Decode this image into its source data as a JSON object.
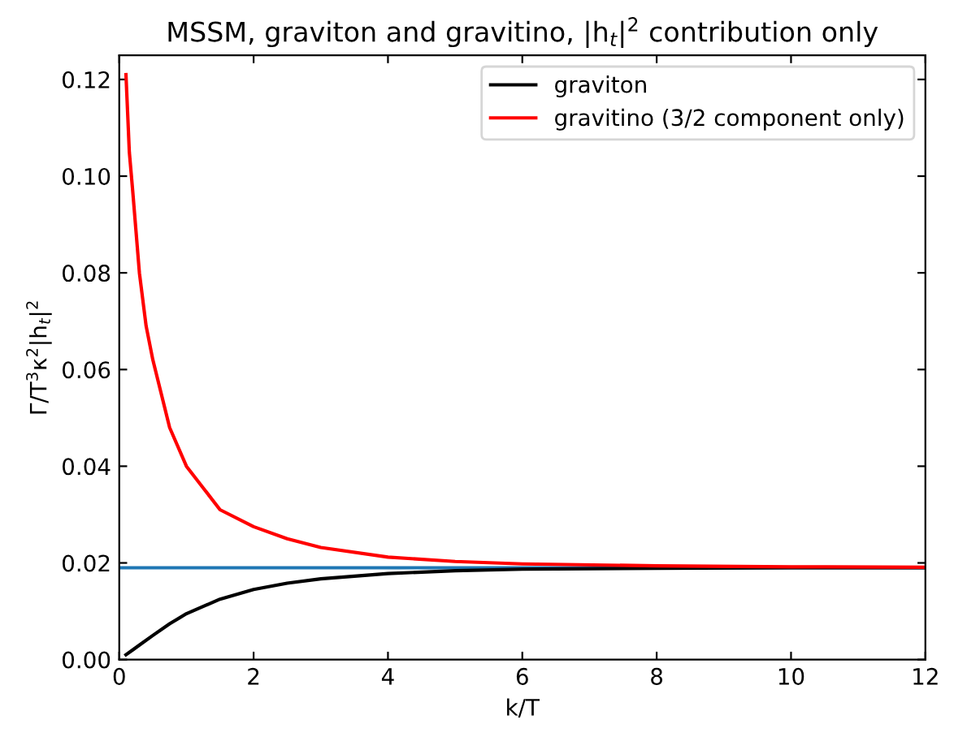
{
  "chart_data": {
    "type": "line",
    "title": "MSSM, graviton and gravitino, |h$_{t}$|$^{2}$ contribution only",
    "xlabel": "k/T",
    "ylabel": "Γ/T$^{3}$κ$^{2}$|h$_{t}$|$^{2}$",
    "series": [
      {
        "name": "graviton",
        "color": "#000000",
        "x": [
          0.1,
          0.2,
          0.3,
          0.5,
          0.75,
          1,
          1.5,
          2,
          2.5,
          3,
          4,
          5,
          6,
          8,
          10,
          12
        ],
        "values": [
          0.001,
          0.002,
          0.003,
          0.005,
          0.0074,
          0.0095,
          0.0125,
          0.0145,
          0.0158,
          0.0167,
          0.0178,
          0.0184,
          0.0187,
          0.0189,
          0.019,
          0.019
        ]
      },
      {
        "name": "gravitino (3/2 component only)",
        "color": "#ff0000",
        "x": [
          0.1,
          0.15,
          0.2,
          0.3,
          0.4,
          0.5,
          0.75,
          1,
          1.5,
          2,
          2.5,
          3,
          4,
          5,
          6,
          8,
          10,
          12
        ],
        "values": [
          0.121,
          0.105,
          0.097,
          0.08,
          0.069,
          0.062,
          0.048,
          0.04,
          0.031,
          0.0275,
          0.025,
          0.0232,
          0.0212,
          0.0203,
          0.0198,
          0.0194,
          0.0192,
          0.0191
        ]
      }
    ],
    "ref_lines": [
      {
        "axis": "y",
        "value": 0.019,
        "color": "#1f77b4"
      }
    ],
    "xlim": [
      0,
      12
    ],
    "xticks": [
      0,
      2,
      4,
      6,
      8,
      10,
      12
    ],
    "ylim": [
      0,
      0.125
    ],
    "yticks": [
      {
        "value": 0,
        "label": "0.00"
      },
      {
        "value": 0.02,
        "label": "0.02"
      },
      {
        "value": 0.04,
        "label": "0.04"
      },
      {
        "value": 0.06,
        "label": "0.06"
      },
      {
        "value": 0.08,
        "label": "0.08"
      },
      {
        "value": 0.1,
        "label": "0.10"
      },
      {
        "value": 0.12,
        "label": "0.12"
      }
    ],
    "legend": "top right",
    "grid": false
  }
}
